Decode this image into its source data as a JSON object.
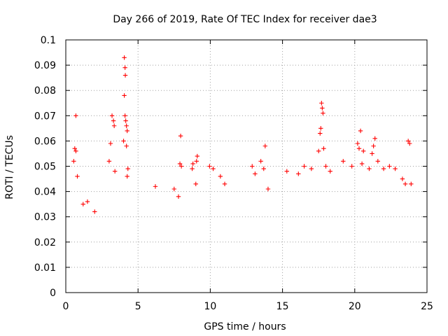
{
  "chart_data": {
    "type": "scatter",
    "title": "Day 266 of 2019, Rate Of TEC Index for receiver dae3",
    "xlabel": "GPS time / hours",
    "ylabel": "ROTI / TECUs",
    "xlim": [
      0,
      25
    ],
    "ylim": [
      0,
      0.1
    ],
    "x_ticks": [
      0,
      5,
      10,
      15,
      20,
      25
    ],
    "x_tick_labels": [
      "0",
      "5",
      "10",
      "15",
      "20",
      "25"
    ],
    "y_ticks": [
      0,
      0.01,
      0.02,
      0.03,
      0.04,
      0.05,
      0.06,
      0.07,
      0.08,
      0.09,
      0.1
    ],
    "y_tick_labels": [
      "0",
      "0.01",
      "0.02",
      "0.03",
      "0.04",
      "0.05",
      "0.06",
      "0.07",
      "0.08",
      "0.09",
      "0.1"
    ],
    "grid": true,
    "marker": "+",
    "series": [
      {
        "name": "ROTI",
        "color": "#ff0000",
        "points": [
          [
            0.7,
            0.07
          ],
          [
            0.62,
            0.057
          ],
          [
            0.7,
            0.056
          ],
          [
            0.8,
            0.046
          ],
          [
            0.55,
            0.052
          ],
          [
            1.5,
            0.036
          ],
          [
            1.2,
            0.035
          ],
          [
            2.0,
            0.032
          ],
          [
            3.2,
            0.07
          ],
          [
            3.3,
            0.068
          ],
          [
            3.35,
            0.066
          ],
          [
            3.1,
            0.059
          ],
          [
            3.0,
            0.052
          ],
          [
            3.4,
            0.048
          ],
          [
            4.05,
            0.093
          ],
          [
            4.1,
            0.089
          ],
          [
            4.12,
            0.086
          ],
          [
            4.05,
            0.078
          ],
          [
            4.1,
            0.07
          ],
          [
            4.15,
            0.068
          ],
          [
            4.2,
            0.066
          ],
          [
            4.25,
            0.064
          ],
          [
            4.0,
            0.06
          ],
          [
            4.2,
            0.058
          ],
          [
            4.3,
            0.049
          ],
          [
            4.25,
            0.046
          ],
          [
            6.2,
            0.042
          ],
          [
            7.5,
            0.041
          ],
          [
            7.8,
            0.038
          ],
          [
            7.95,
            0.062
          ],
          [
            7.9,
            0.051
          ],
          [
            8.0,
            0.05
          ],
          [
            8.8,
            0.051
          ],
          [
            8.75,
            0.049
          ],
          [
            9.0,
            0.043
          ],
          [
            9.1,
            0.054
          ],
          [
            9.05,
            0.052
          ],
          [
            9.95,
            0.05
          ],
          [
            10.2,
            0.049
          ],
          [
            10.7,
            0.046
          ],
          [
            11.0,
            0.043
          ],
          [
            12.9,
            0.05
          ],
          [
            13.1,
            0.047
          ],
          [
            13.5,
            0.052
          ],
          [
            13.8,
            0.058
          ],
          [
            13.7,
            0.049
          ],
          [
            14.0,
            0.041
          ],
          [
            15.3,
            0.048
          ],
          [
            16.1,
            0.047
          ],
          [
            16.5,
            0.05
          ],
          [
            17.0,
            0.049
          ],
          [
            17.6,
            0.063
          ],
          [
            17.7,
            0.075
          ],
          [
            17.75,
            0.073
          ],
          [
            17.8,
            0.071
          ],
          [
            17.65,
            0.065
          ],
          [
            17.85,
            0.057
          ],
          [
            17.5,
            0.056
          ],
          [
            18.0,
            0.05
          ],
          [
            18.3,
            0.048
          ],
          [
            19.2,
            0.052
          ],
          [
            19.8,
            0.05
          ],
          [
            20.2,
            0.059
          ],
          [
            20.4,
            0.064
          ],
          [
            20.3,
            0.057
          ],
          [
            20.6,
            0.056
          ],
          [
            20.5,
            0.051
          ],
          [
            21.0,
            0.049
          ],
          [
            21.2,
            0.055
          ],
          [
            21.4,
            0.061
          ],
          [
            21.3,
            0.058
          ],
          [
            21.6,
            0.052
          ],
          [
            22.0,
            0.049
          ],
          [
            22.4,
            0.05
          ],
          [
            22.8,
            0.049
          ],
          [
            23.3,
            0.045
          ],
          [
            23.5,
            0.043
          ],
          [
            23.7,
            0.06
          ],
          [
            23.8,
            0.059
          ],
          [
            23.9,
            0.043
          ]
        ]
      }
    ]
  }
}
